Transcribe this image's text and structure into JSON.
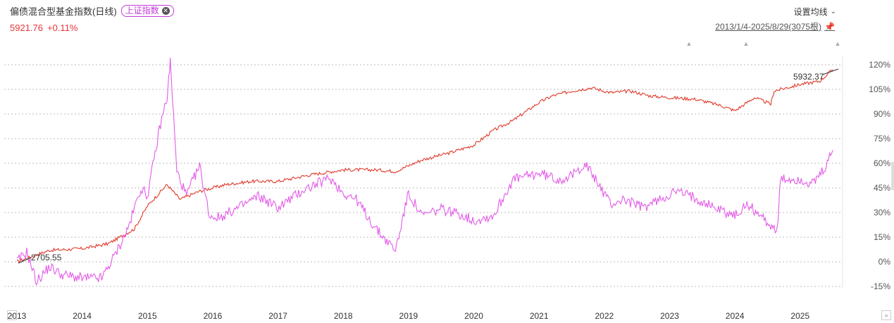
{
  "header": {
    "title": "偏债混合型基金指数(日线)",
    "compare_label": "上证指数",
    "close_glyph": "✕",
    "price": "5921.76",
    "change": "+0.11%",
    "ma_settings": "设置均线",
    "range": "2013/1/4-2025/8/29(3075根)"
  },
  "icons": {
    "pin": "pin-icon",
    "chevron": "chevron-down-icon",
    "expand": "expand-icon"
  },
  "colors": {
    "fund_line": "#e03a2b",
    "index_line": "#e35ce8",
    "negative_tick": "#22c55e",
    "grid": "#bdbdbd"
  },
  "chart_data": {
    "type": "line",
    "title": "",
    "xlabel": "",
    "ylabel": "",
    "x_ticks": [
      "2013",
      "2014",
      "2015",
      "2016",
      "2017",
      "2018",
      "2019",
      "2020",
      "2021",
      "2022",
      "2023",
      "2024",
      "2025"
    ],
    "y_ticks": [
      "120%",
      "105%",
      "90%",
      "75%",
      "60%",
      "45%",
      "30%",
      "15%",
      "0%",
      "-15%"
    ],
    "ylim": [
      -15,
      120
    ],
    "grid": true,
    "annotations": [
      "2705.55",
      "5932.37"
    ],
    "series": [
      {
        "key": "fund",
        "color": "#e03a2b",
        "x": [
          2013.0,
          2013.5,
          2014.0,
          2014.4,
          2014.8,
          2015.0,
          2015.3,
          2015.5,
          2015.8,
          2016.2,
          2016.6,
          2017.0,
          2017.5,
          2018.0,
          2018.5,
          2018.8,
          2019.2,
          2019.6,
          2020.0,
          2020.3,
          2020.6,
          2021.0,
          2021.2,
          2021.5,
          2021.8,
          2022.1,
          2022.4,
          2022.7,
          2023.0,
          2023.4,
          2023.8,
          2024.0,
          2024.3,
          2024.55,
          2024.6,
          2025.0,
          2025.3,
          2025.5
        ],
        "values": [
          0,
          7,
          8,
          11,
          20,
          34,
          47,
          38,
          43,
          47,
          49,
          49,
          53,
          56,
          56,
          55,
          62,
          66,
          71,
          80,
          86,
          97,
          101,
          104,
          106,
          103,
          104,
          101,
          100,
          99,
          95,
          92,
          100,
          96,
          104,
          108,
          110,
          117
        ]
      },
      {
        "key": "index",
        "color": "#e35ce8",
        "x": [
          2013.0,
          2013.15,
          2013.3,
          2013.5,
          2013.7,
          2014.0,
          2014.3,
          2014.5,
          2014.7,
          2014.9,
          2015.0,
          2015.2,
          2015.3,
          2015.35,
          2015.45,
          2015.6,
          2015.7,
          2015.8,
          2015.95,
          2016.1,
          2016.4,
          2016.7,
          2017.0,
          2017.4,
          2017.8,
          2018.0,
          2018.2,
          2018.5,
          2018.8,
          2019.0,
          2019.2,
          2019.5,
          2019.8,
          2020.0,
          2020.3,
          2020.6,
          2021.0,
          2021.3,
          2021.5,
          2021.7,
          2021.9,
          2022.1,
          2022.3,
          2022.6,
          2022.9,
          2023.1,
          2023.4,
          2023.7,
          2024.0,
          2024.2,
          2024.5,
          2024.65,
          2024.7,
          2025.0,
          2025.2,
          2025.4,
          2025.5
        ],
        "values": [
          0,
          6,
          -12,
          -3,
          -8,
          -10,
          -10,
          4,
          20,
          45,
          40,
          84,
          100,
          122,
          55,
          40,
          50,
          58,
          28,
          27,
          33,
          40,
          33,
          44,
          51,
          42,
          38,
          20,
          7,
          42,
          28,
          32,
          29,
          25,
          28,
          50,
          54,
          50,
          52,
          60,
          48,
          35,
          38,
          33,
          39,
          43,
          39,
          33,
          28,
          35,
          24,
          19,
          50,
          50,
          47,
          58,
          68
        ]
      }
    ]
  }
}
